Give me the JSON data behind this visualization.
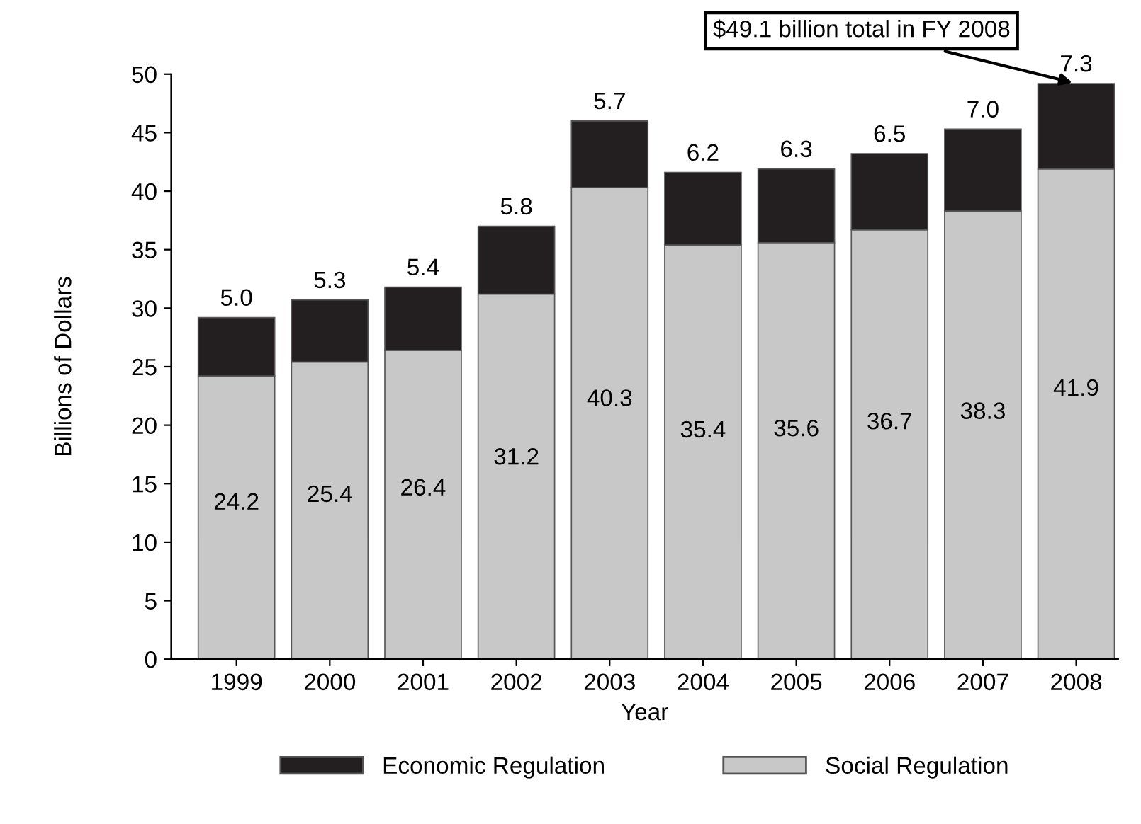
{
  "chart_data": {
    "type": "bar",
    "stacked": true,
    "xlabel": "Year",
    "ylabel": "Billions of Dollars",
    "categories": [
      "1999",
      "2000",
      "2001",
      "2002",
      "2003",
      "2004",
      "2005",
      "2006",
      "2007",
      "2008"
    ],
    "series": [
      {
        "name": "Social Regulation",
        "color": "#c8c8c8",
        "values": [
          24.2,
          25.4,
          26.4,
          31.2,
          40.3,
          35.4,
          35.6,
          36.7,
          38.3,
          41.9
        ],
        "value_labels": [
          "24.2",
          "25.4",
          "26.4",
          "31.2",
          "40.3",
          "35.4",
          "35.6",
          "36.7",
          "38.3",
          "41.9"
        ]
      },
      {
        "name": "Economic Regulation",
        "color": "#231f20",
        "values": [
          5.0,
          5.3,
          5.4,
          5.8,
          5.7,
          6.2,
          6.3,
          6.5,
          7.0,
          7.3
        ],
        "value_labels": [
          "5.0",
          "5.3",
          "5.4",
          "5.8",
          "5.7",
          "6.2",
          "6.3",
          "6.5",
          "7.0",
          "7.3"
        ]
      }
    ],
    "ylim": [
      0,
      50
    ],
    "yticks": [
      0,
      5,
      10,
      15,
      20,
      25,
      30,
      35,
      40,
      45,
      50
    ],
    "grid": false,
    "legend": "bottom",
    "annotations": [
      {
        "text": "$49.1 billion total in FY 2008",
        "x": "2008",
        "y": 49.2
      }
    ]
  }
}
